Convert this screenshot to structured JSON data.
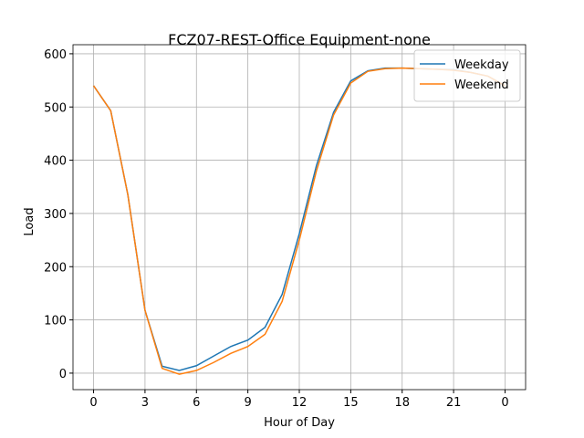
{
  "chart_data": {
    "type": "line",
    "title": "FCZ07-REST-Office Equipment-none",
    "x_label": "Hour of Day",
    "y_label": "Load",
    "x": [
      0,
      1,
      2,
      3,
      4,
      5,
      6,
      7,
      8,
      9,
      10,
      11,
      12,
      13,
      14,
      15,
      16,
      17,
      18,
      19,
      20,
      21,
      22,
      23,
      24
    ],
    "series": [
      {
        "name": "Weekday",
        "color": "#1f77b4",
        "values": [
          540,
          493,
          335,
          118,
          13,
          5,
          14,
          32,
          50,
          62,
          86,
          148,
          262,
          390,
          490,
          549,
          568,
          573,
          573,
          572,
          571,
          570,
          565,
          558,
          540
        ]
      },
      {
        "name": "Weekend",
        "color": "#ff7f0e",
        "values": [
          540,
          493,
          335,
          118,
          9,
          -2,
          5,
          20,
          37,
          50,
          73,
          135,
          250,
          380,
          485,
          545,
          567,
          572,
          573,
          572,
          571,
          569,
          565,
          558,
          540
        ]
      }
    ],
    "xlim": [
      -1.2,
      25.2
    ],
    "xticks": [
      0,
      3,
      6,
      9,
      12,
      15,
      18,
      21,
      {
        "value": 24,
        "label": "0"
      }
    ],
    "ylim": [
      -31,
      617
    ],
    "yticks": [
      0,
      100,
      200,
      300,
      400,
      500,
      600
    ],
    "grid": true,
    "legend": "upper right"
  }
}
